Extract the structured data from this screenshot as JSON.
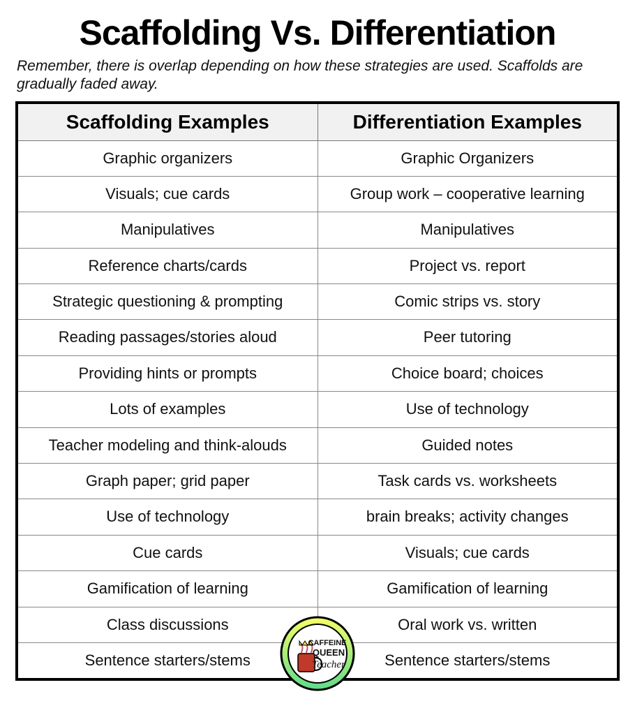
{
  "title": "Scaffolding Vs. Differentiation",
  "subtitle": "Remember, there is overlap depending on how these strategies are used. Scaffolds are gradually faded away.",
  "table": {
    "columns": [
      "Scaffolding Examples",
      "Differentiation Examples"
    ],
    "rows": [
      [
        "Graphic organizers",
        "Graphic Organizers"
      ],
      [
        "Visuals; cue cards",
        "Group work – cooperative learning"
      ],
      [
        "Manipulatives",
        "Manipulatives"
      ],
      [
        "Reference charts/cards",
        "Project vs. report"
      ],
      [
        "Strategic questioning & prompting",
        "Comic strips vs. story"
      ],
      [
        "Reading passages/stories aloud",
        "Peer tutoring"
      ],
      [
        "Providing hints or prompts",
        "Choice board; choices"
      ],
      [
        "Lots of examples",
        "Use of technology"
      ],
      [
        "Teacher modeling and think-alouds",
        "Guided notes"
      ],
      [
        "Graph paper; grid paper",
        "Task cards vs. worksheets"
      ],
      [
        "Use of technology",
        "brain breaks; activity changes"
      ],
      [
        "Cue cards",
        "Visuals; cue cards"
      ],
      [
        "Gamification of learning",
        "Gamification of learning"
      ],
      [
        "Class discussions",
        "Oral work vs. written"
      ],
      [
        "Sentence starters/stems",
        "Sentence starters/stems"
      ]
    ],
    "header_bg": "#f1f1f1",
    "border_color": "#000000",
    "cell_border_color": "#888888",
    "header_fontsize": 28,
    "cell_fontsize": 22,
    "outer_border_width": 4
  },
  "logo": {
    "line1": "CAFFEINE",
    "line2": "QUEEN",
    "line3": "Teacher",
    "ring_outer": "#000000",
    "ring_gradient_top": "#f6ff66",
    "ring_gradient_bottom": "#5edc8b",
    "mug_color": "#c0392b",
    "text_color": "#111111",
    "inner_bg": "#ffffff"
  }
}
